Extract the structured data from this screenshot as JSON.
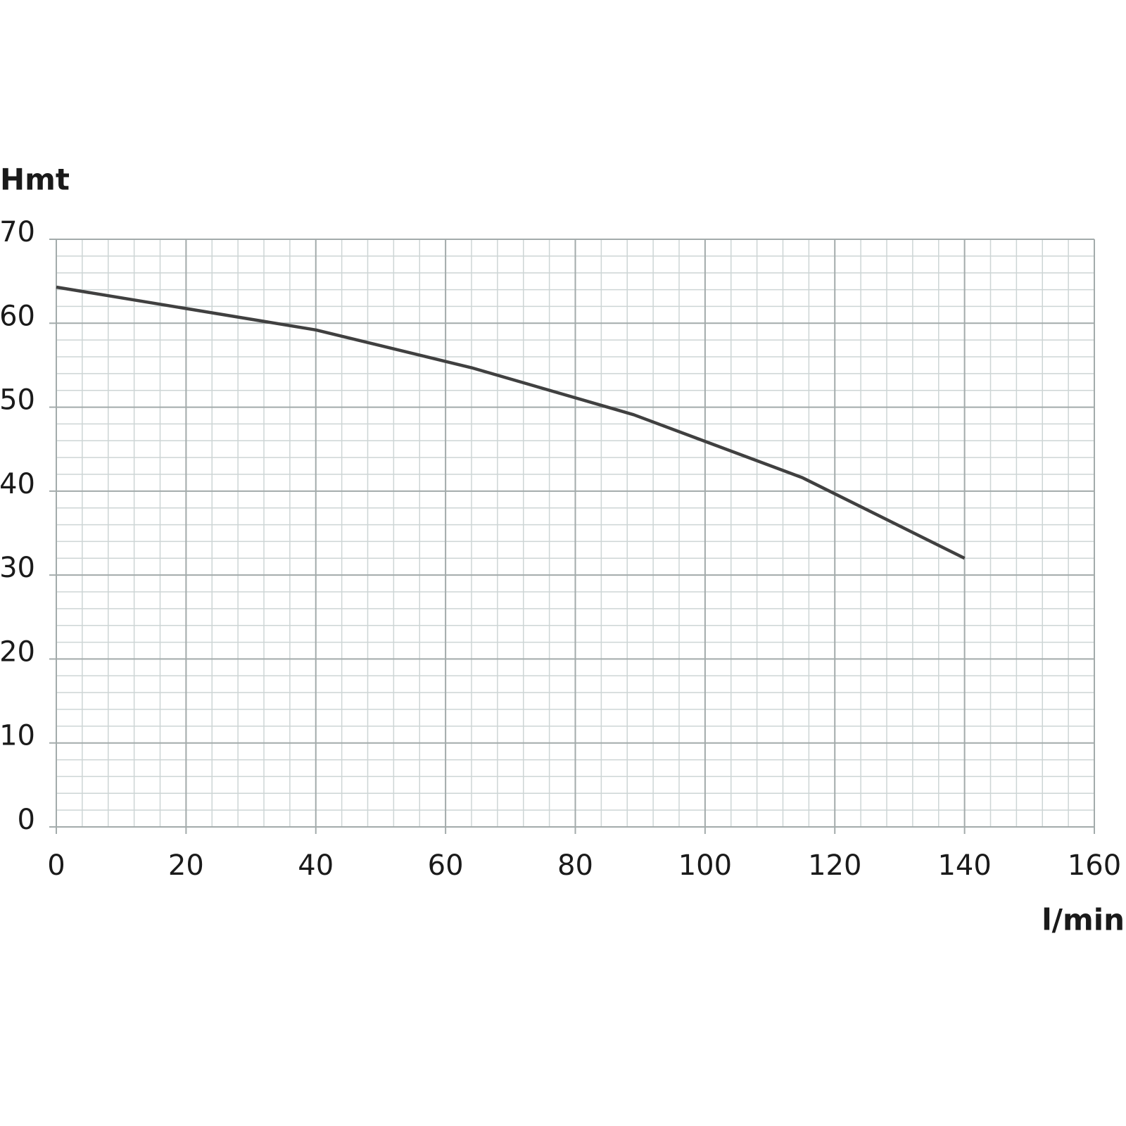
{
  "chart_data": {
    "type": "line",
    "y_label": "Hmt",
    "x_label": "l/min",
    "x": [
      0,
      40,
      64,
      89,
      115,
      140
    ],
    "series": [
      {
        "color": "#404040",
        "values": [
          64.3,
          59.2,
          54.7,
          49.1,
          41.6,
          32.0
        ]
      }
    ],
    "xlim": [
      0,
      160
    ],
    "xticks": [
      0,
      20,
      40,
      60,
      80,
      100,
      120,
      140,
      160
    ],
    "ylim": [
      0,
      70
    ],
    "yticks": [
      0,
      10,
      20,
      30,
      40,
      50,
      60,
      70
    ],
    "xminor": 4,
    "yminor": 2,
    "grid": true
  }
}
